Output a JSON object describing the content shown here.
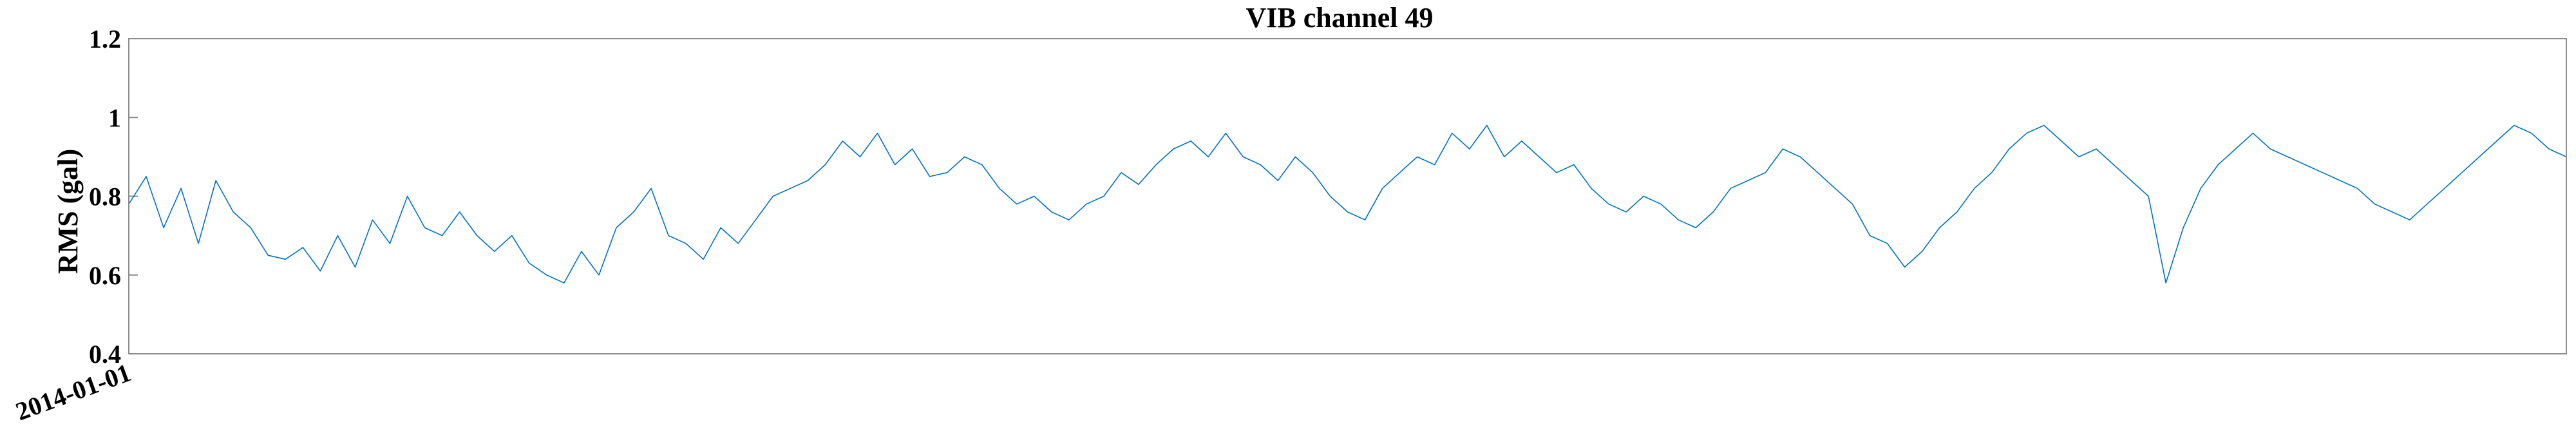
{
  "chart_data": {
    "type": "line",
    "title": "VIB channel 49",
    "xlabel": "",
    "ylabel": "RMS (gal)",
    "x_type": "date",
    "x_ticks": [
      "2014-01-01"
    ],
    "ylim": [
      0.4,
      1.2
    ],
    "y_ticks": [
      "0.4",
      "0.6",
      "0.8",
      "1",
      "1.2"
    ],
    "grid": false,
    "series": [
      {
        "color": "#0072BD",
        "points": [
          [
            "2014-01-01",
            0.78
          ],
          [
            "2014-01-07",
            0.85
          ],
          [
            "2014-01-13",
            0.72
          ],
          [
            "2014-01-19",
            0.82
          ],
          [
            "2014-01-25",
            0.68
          ],
          [
            "2014-01-31",
            0.84
          ],
          [
            "2014-02-06",
            0.76
          ],
          [
            "2014-02-12",
            0.72
          ],
          [
            "2014-02-18",
            0.65
          ],
          [
            "2014-02-24",
            0.64
          ],
          [
            "2014-03-02",
            0.67
          ],
          [
            "2014-03-08",
            0.61
          ],
          [
            "2014-03-14",
            0.7
          ],
          [
            "2014-03-20",
            0.62
          ],
          [
            "2014-03-26",
            0.74
          ],
          [
            "2014-04-01",
            0.68
          ],
          [
            "2014-04-07",
            0.8
          ],
          [
            "2014-04-13",
            0.72
          ],
          [
            "2014-04-19",
            0.7
          ],
          [
            "2014-04-25",
            0.76
          ],
          [
            "2014-05-01",
            0.7
          ],
          [
            "2014-05-07",
            0.66
          ],
          [
            "2014-05-13",
            0.7
          ],
          [
            "2014-05-19",
            0.63
          ],
          [
            "2014-05-25",
            0.6
          ],
          [
            "2014-05-31",
            0.58
          ],
          [
            "2014-06-06",
            0.66
          ],
          [
            "2014-06-12",
            0.6
          ],
          [
            "2014-06-18",
            0.72
          ],
          [
            "2014-06-24",
            0.76
          ],
          [
            "2014-06-30",
            0.82
          ],
          [
            "2014-07-06",
            0.7
          ],
          [
            "2014-07-12",
            0.68
          ],
          [
            "2014-07-18",
            0.64
          ],
          [
            "2014-07-24",
            0.72
          ],
          [
            "2014-07-30",
            0.68
          ],
          [
            "2014-08-05",
            0.74
          ],
          [
            "2014-08-11",
            0.8
          ],
          [
            "2014-08-17",
            0.82
          ],
          [
            "2014-08-23",
            0.84
          ],
          [
            "2014-08-29",
            0.88
          ],
          [
            "2014-09-04",
            0.94
          ],
          [
            "2014-09-10",
            0.9
          ],
          [
            "2014-09-16",
            0.96
          ],
          [
            "2014-09-22",
            0.88
          ],
          [
            "2014-09-28",
            0.92
          ],
          [
            "2014-10-04",
            0.85
          ],
          [
            "2014-10-10",
            0.86
          ],
          [
            "2014-10-16",
            0.9
          ],
          [
            "2014-10-22",
            0.88
          ],
          [
            "2014-10-28",
            0.82
          ],
          [
            "2014-11-03",
            0.78
          ],
          [
            "2014-11-09",
            0.8
          ],
          [
            "2014-11-15",
            0.76
          ],
          [
            "2014-11-21",
            0.74
          ],
          [
            "2014-11-27",
            0.78
          ],
          [
            "2014-12-03",
            0.8
          ],
          [
            "2014-12-09",
            0.86
          ],
          [
            "2014-12-15",
            0.83
          ],
          [
            "2014-12-21",
            0.88
          ],
          [
            "2014-12-27",
            0.92
          ],
          [
            "2015-01-02",
            0.94
          ],
          [
            "2015-01-08",
            0.9
          ],
          [
            "2015-01-14",
            0.96
          ],
          [
            "2015-01-20",
            0.9
          ],
          [
            "2015-01-26",
            0.88
          ],
          [
            "2015-02-01",
            0.84
          ],
          [
            "2015-02-07",
            0.9
          ],
          [
            "2015-02-13",
            0.86
          ],
          [
            "2015-02-19",
            0.8
          ],
          [
            "2015-02-25",
            0.76
          ],
          [
            "2015-03-03",
            0.74
          ],
          [
            "2015-03-09",
            0.82
          ],
          [
            "2015-03-15",
            0.86
          ],
          [
            "2015-03-21",
            0.9
          ],
          [
            "2015-03-27",
            0.88
          ],
          [
            "2015-04-02",
            0.96
          ],
          [
            "2015-04-08",
            0.92
          ],
          [
            "2015-04-14",
            0.98
          ],
          [
            "2015-04-20",
            0.9
          ],
          [
            "2015-04-26",
            0.94
          ],
          [
            "2015-05-02",
            0.9
          ],
          [
            "2015-05-08",
            0.86
          ],
          [
            "2015-05-14",
            0.88
          ],
          [
            "2015-05-20",
            0.82
          ],
          [
            "2015-05-26",
            0.78
          ],
          [
            "2015-06-01",
            0.76
          ],
          [
            "2015-06-07",
            0.8
          ],
          [
            "2015-06-13",
            0.78
          ],
          [
            "2015-06-19",
            0.74
          ],
          [
            "2015-06-25",
            0.72
          ],
          [
            "2015-07-01",
            0.76
          ],
          [
            "2015-07-07",
            0.82
          ],
          [
            "2015-07-13",
            0.84
          ],
          [
            "2015-07-19",
            0.86
          ],
          [
            "2015-07-25",
            0.92
          ],
          [
            "2015-07-31",
            0.9
          ],
          [
            "2015-08-06",
            0.86
          ],
          [
            "2015-08-12",
            0.82
          ],
          [
            "2015-08-18",
            0.78
          ],
          [
            "2015-08-24",
            0.7
          ],
          [
            "2015-08-30",
            0.68
          ],
          [
            "2015-09-05",
            0.62
          ],
          [
            "2015-09-11",
            0.66
          ],
          [
            "2015-09-17",
            0.72
          ],
          [
            "2015-09-23",
            0.76
          ],
          [
            "2015-09-29",
            0.82
          ],
          [
            "2015-10-05",
            0.86
          ],
          [
            "2015-10-11",
            0.92
          ],
          [
            "2015-10-17",
            0.96
          ],
          [
            "2015-10-23",
            0.98
          ],
          [
            "2015-10-29",
            0.94
          ],
          [
            "2015-11-04",
            0.9
          ],
          [
            "2015-11-10",
            0.92
          ],
          [
            "2015-11-16",
            0.88
          ],
          [
            "2015-11-22",
            0.84
          ],
          [
            "2015-11-28",
            0.8
          ],
          [
            "2015-12-04",
            0.58
          ],
          [
            "2015-12-10",
            0.72
          ],
          [
            "2015-12-16",
            0.82
          ],
          [
            "2015-12-22",
            0.88
          ],
          [
            "2015-12-28",
            0.92
          ],
          [
            "2016-01-03",
            0.96
          ],
          [
            "2016-01-09",
            0.92
          ],
          [
            "2016-01-15",
            0.9
          ],
          [
            "2016-01-21",
            0.88
          ],
          [
            "2016-01-27",
            0.86
          ],
          [
            "2016-02-02",
            0.84
          ],
          [
            "2016-02-08",
            0.82
          ],
          [
            "2016-02-14",
            0.78
          ],
          [
            "2016-02-20",
            0.76
          ],
          [
            "2016-02-26",
            0.74
          ],
          [
            "2016-03-03",
            0.78
          ],
          [
            "2016-03-09",
            0.82
          ],
          [
            "2016-03-15",
            0.86
          ],
          [
            "2016-03-21",
            0.9
          ],
          [
            "2016-03-27",
            0.94
          ],
          [
            "2016-04-02",
            0.98
          ],
          [
            "2016-04-08",
            0.96
          ],
          [
            "2016-04-14",
            0.92
          ],
          [
            "2016-04-20",
            0.9
          ]
        ]
      }
    ]
  }
}
